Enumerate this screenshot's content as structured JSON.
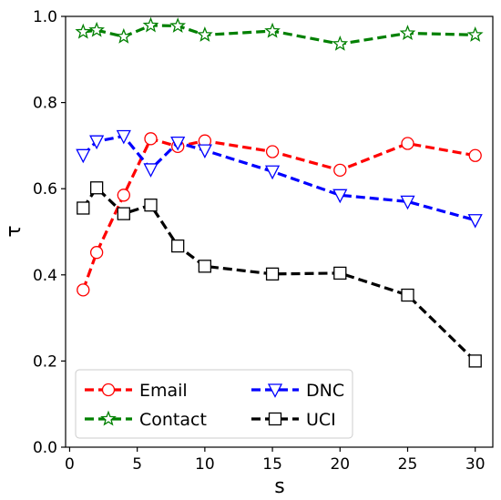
{
  "chart_data": {
    "type": "line",
    "xlabel": "s",
    "ylabel": "τ",
    "xlim": [
      -0.3,
      31.3
    ],
    "ylim": [
      0.0,
      1.0
    ],
    "xticks": [
      0,
      5,
      10,
      15,
      20,
      25,
      30
    ],
    "xtick_labels": [
      "0",
      "5",
      "10",
      "15",
      "20",
      "25",
      "30"
    ],
    "yticks": [
      0.0,
      0.2,
      0.4,
      0.6,
      0.8,
      1.0
    ],
    "ytick_labels": [
      "0.0",
      "0.2",
      "0.4",
      "0.6",
      "0.8",
      "1.0"
    ],
    "grid": false,
    "legend_position": "lower-left",
    "series": [
      {
        "name": "Email",
        "color": "#ff0000",
        "marker": "circle",
        "x": [
          1,
          2,
          4,
          6,
          8,
          10,
          15,
          20,
          25,
          30
        ],
        "y": [
          0.365,
          0.452,
          0.585,
          0.716,
          0.698,
          0.711,
          0.686,
          0.643,
          0.705,
          0.677
        ]
      },
      {
        "name": "Contact",
        "color": "#008000",
        "marker": "star",
        "x": [
          1,
          2,
          4,
          6,
          8,
          10,
          15,
          20,
          25,
          30
        ],
        "y": [
          0.964,
          0.968,
          0.953,
          0.979,
          0.978,
          0.957,
          0.966,
          0.936,
          0.961,
          0.957
        ]
      },
      {
        "name": "DNC",
        "color": "#0000ff",
        "marker": "triangle-down",
        "x": [
          1,
          2,
          4,
          6,
          8,
          10,
          15,
          20,
          25,
          30
        ],
        "y": [
          0.678,
          0.71,
          0.722,
          0.645,
          0.707,
          0.689,
          0.64,
          0.585,
          0.57,
          0.527
        ]
      },
      {
        "name": "UCI",
        "color": "#000000",
        "marker": "square",
        "x": [
          1,
          2,
          4,
          6,
          8,
          10,
          15,
          20,
          25,
          30
        ],
        "y": [
          0.555,
          0.602,
          0.542,
          0.562,
          0.467,
          0.42,
          0.402,
          0.404,
          0.353,
          0.2
        ]
      }
    ]
  }
}
